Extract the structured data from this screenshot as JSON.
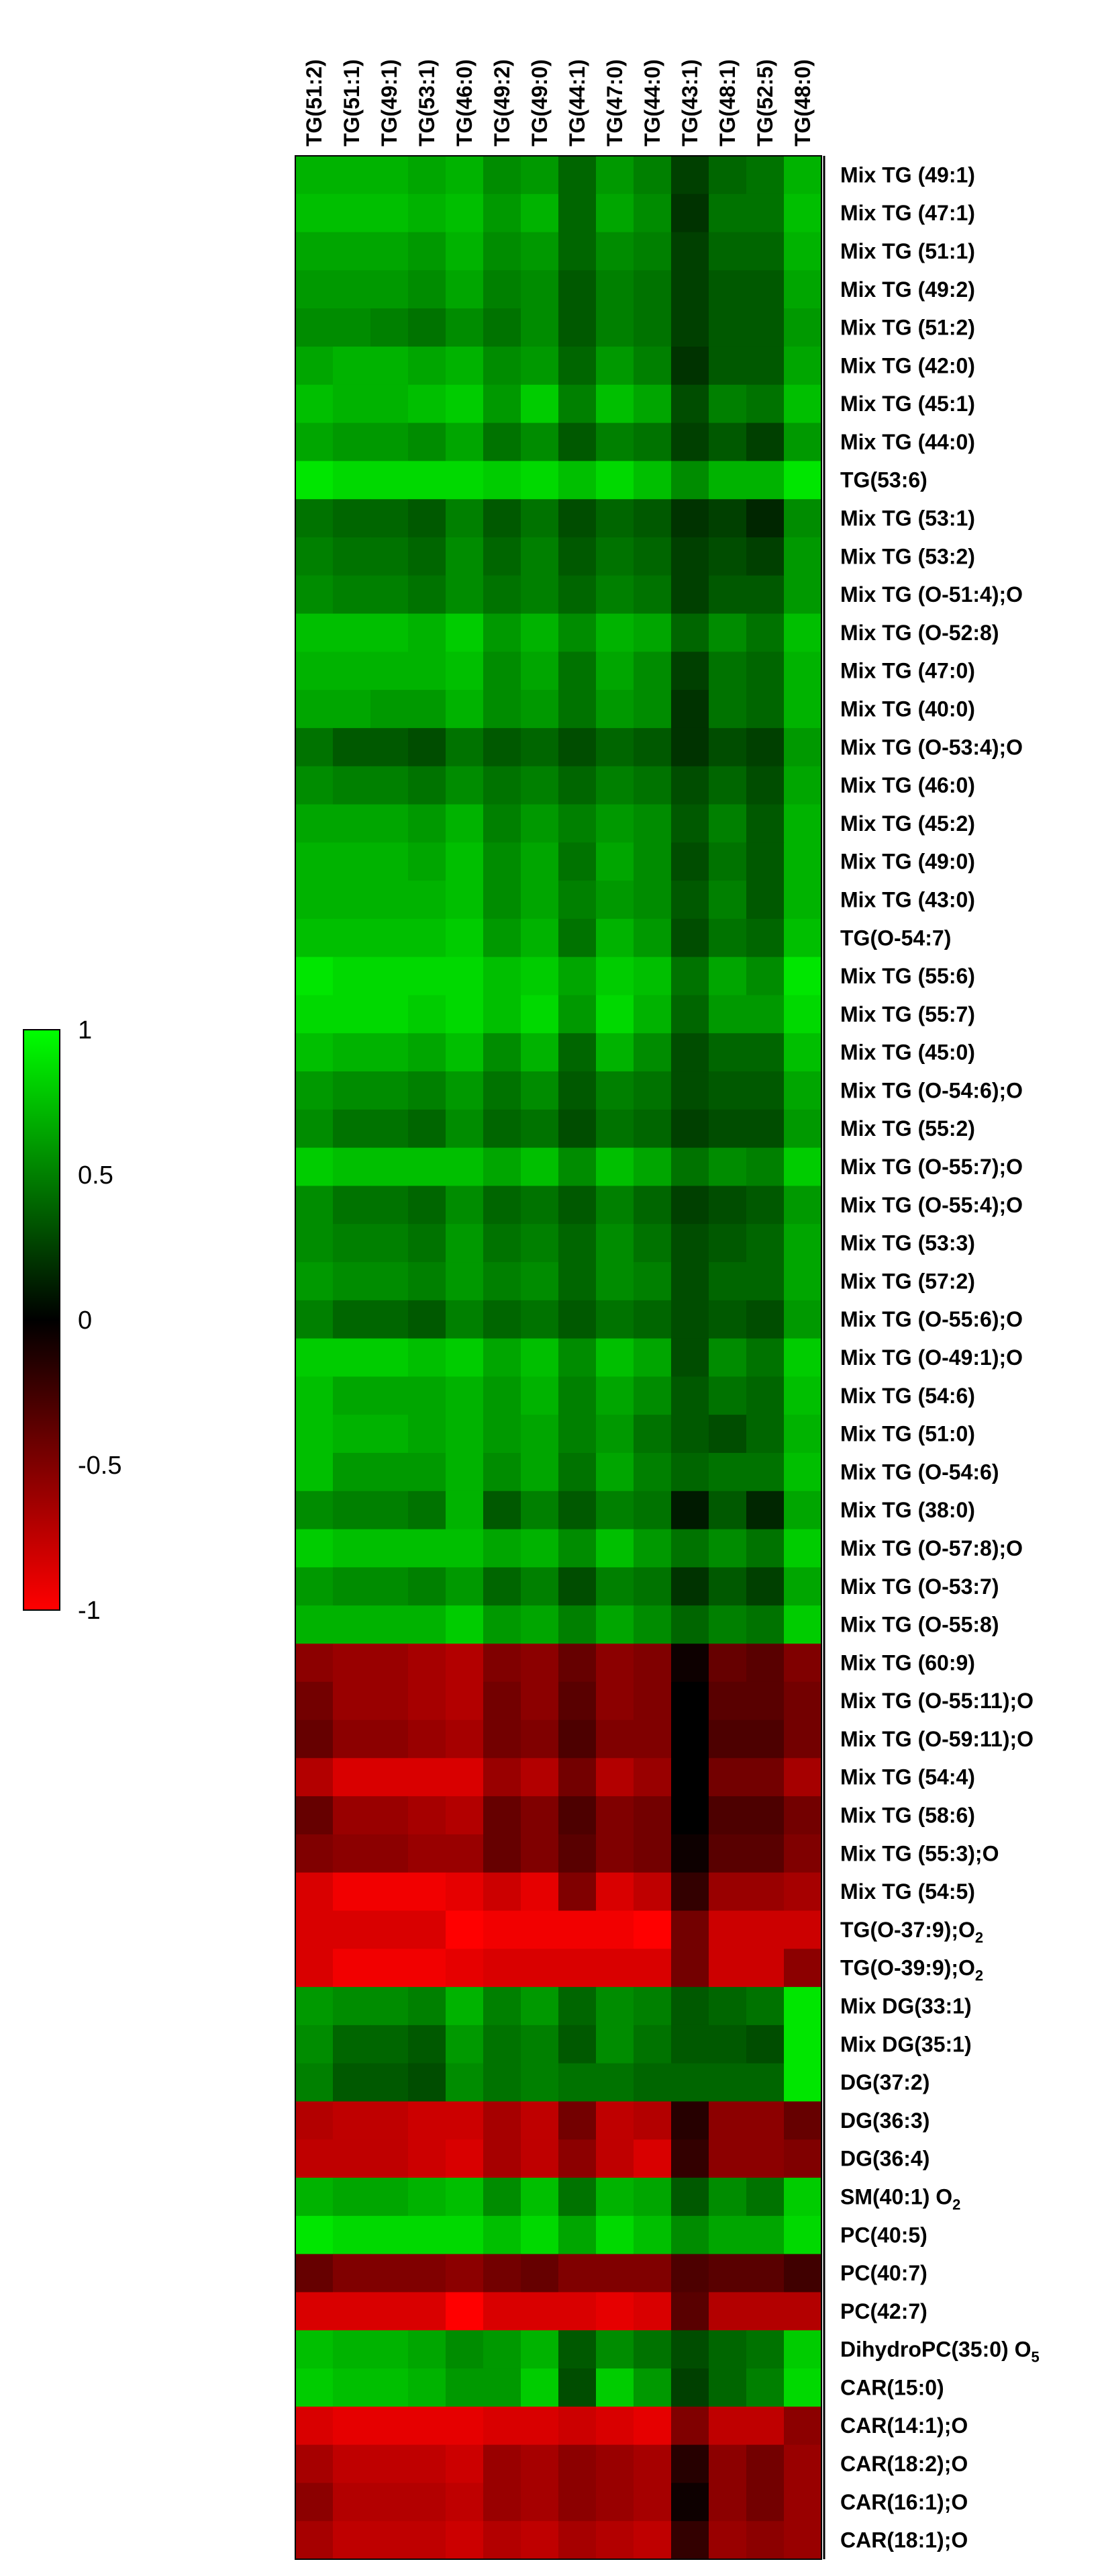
{
  "chart_data": {
    "type": "heatmap",
    "title": "",
    "xlabel": "",
    "ylabel": "",
    "columns": [
      "TG(51:2)",
      "TG(51:1)",
      "TG(49:1)",
      "TG(53:1)",
      "TG(46:0)",
      "TG(49:2)",
      "TG(49:0)",
      "TG(44:1)",
      "TG(47:0)",
      "TG(44:0)",
      "TG(43:1)",
      "TG(48:1)",
      "TG(52:5)",
      "TG(48:0)"
    ],
    "rows": [
      {
        "label": "Mix TG (49:1)"
      },
      {
        "label": "Mix TG (47:1)"
      },
      {
        "label": "Mix TG (51:1)"
      },
      {
        "label": "Mix TG (49:2)"
      },
      {
        "label": "Mix TG (51:2)"
      },
      {
        "label": "Mix TG (42:0)"
      },
      {
        "label": "Mix TG (45:1)"
      },
      {
        "label": "Mix TG (44:0)"
      },
      {
        "label": "TG(53:6)"
      },
      {
        "label": "Mix TG (53:1)"
      },
      {
        "label": "Mix TG (53:2)"
      },
      {
        "label": "Mix TG (O-51:4);O"
      },
      {
        "label": "Mix TG (O-52:8)"
      },
      {
        "label": "Mix TG (47:0)"
      },
      {
        "label": "Mix TG (40:0)"
      },
      {
        "label": "Mix TG (O-53:4);O"
      },
      {
        "label": "Mix TG (46:0)"
      },
      {
        "label": "Mix TG (45:2)"
      },
      {
        "label": "Mix TG (49:0)"
      },
      {
        "label": "Mix TG (43:0)"
      },
      {
        "label": "TG(O-54:7)"
      },
      {
        "label": "Mix TG (55:6)"
      },
      {
        "label": "Mix TG (55:7)"
      },
      {
        "label": "Mix TG (45:0)"
      },
      {
        "label": "Mix TG (O-54:6);O"
      },
      {
        "label": "Mix TG (55:2)"
      },
      {
        "label": "Mix TG (O-55:7);O"
      },
      {
        "label": "Mix TG (O-55:4);O"
      },
      {
        "label": "Mix TG (53:3)"
      },
      {
        "label": "Mix TG (57:2)"
      },
      {
        "label": "Mix TG (O-55:6);O"
      },
      {
        "label": "Mix TG (O-49:1);O"
      },
      {
        "label": "Mix TG (54:6)"
      },
      {
        "label": "Mix TG (51:0)"
      },
      {
        "label": "Mix TG (O-54:6)"
      },
      {
        "label": "Mix TG (38:0)"
      },
      {
        "label": "Mix TG (O-57:8);O"
      },
      {
        "label": "Mix TG (O-53:7)"
      },
      {
        "label": "Mix TG (O-55:8)"
      },
      {
        "label": "Mix TG (60:9)"
      },
      {
        "label": "Mix TG (O-55:11);O"
      },
      {
        "label": "Mix TG (O-59:11);O"
      },
      {
        "label": "Mix TG (54:4)"
      },
      {
        "label": "Mix TG (58:6)"
      },
      {
        "label": "Mix TG (55:3);O"
      },
      {
        "label": "Mix TG (54:5)"
      },
      {
        "label": "TG(O-37:9);O",
        "sub": "2"
      },
      {
        "label": "TG(O-39:9);O",
        "sub": "2"
      },
      {
        "label": "Mix DG(33:1)"
      },
      {
        "label": "Mix DG(35:1)"
      },
      {
        "label": "DG(37:2)"
      },
      {
        "label": "DG(36:3)"
      },
      {
        "label": "DG(36:4)"
      },
      {
        "label": "SM(40:1) O",
        "sub": "2"
      },
      {
        "label": "PC(40:5)"
      },
      {
        "label": "PC(40:7)"
      },
      {
        "label": "PC(42:7)"
      },
      {
        "label": "DihydroPC(35:0) O",
        "sub": "5"
      },
      {
        "label": "CAR(15:0)"
      },
      {
        "label": "CAR(14:1);O"
      },
      {
        "label": "CAR(18:2);O"
      },
      {
        "label": "CAR(16:1);O"
      },
      {
        "label": "CAR(18:1);O"
      }
    ],
    "values": [
      [
        0.7,
        0.7,
        0.7,
        0.65,
        0.7,
        0.55,
        0.6,
        0.4,
        0.6,
        0.5,
        0.25,
        0.4,
        0.45,
        0.7
      ],
      [
        0.75,
        0.75,
        0.75,
        0.7,
        0.75,
        0.6,
        0.7,
        0.4,
        0.65,
        0.55,
        0.2,
        0.45,
        0.45,
        0.75
      ],
      [
        0.65,
        0.65,
        0.65,
        0.6,
        0.7,
        0.55,
        0.6,
        0.4,
        0.55,
        0.5,
        0.25,
        0.4,
        0.4,
        0.7
      ],
      [
        0.6,
        0.6,
        0.6,
        0.55,
        0.65,
        0.5,
        0.55,
        0.35,
        0.5,
        0.45,
        0.25,
        0.35,
        0.35,
        0.65
      ],
      [
        0.55,
        0.55,
        0.5,
        0.45,
        0.55,
        0.45,
        0.55,
        0.35,
        0.5,
        0.45,
        0.25,
        0.35,
        0.35,
        0.6
      ],
      [
        0.65,
        0.7,
        0.7,
        0.65,
        0.7,
        0.55,
        0.6,
        0.4,
        0.6,
        0.5,
        0.2,
        0.35,
        0.35,
        0.65
      ],
      [
        0.75,
        0.7,
        0.7,
        0.75,
        0.8,
        0.6,
        0.8,
        0.5,
        0.75,
        0.65,
        0.3,
        0.5,
        0.45,
        0.75
      ],
      [
        0.65,
        0.6,
        0.6,
        0.55,
        0.65,
        0.45,
        0.55,
        0.35,
        0.5,
        0.45,
        0.25,
        0.35,
        0.25,
        0.6
      ],
      [
        0.9,
        0.85,
        0.85,
        0.85,
        0.85,
        0.8,
        0.85,
        0.75,
        0.85,
        0.75,
        0.55,
        0.7,
        0.7,
        0.9
      ],
      [
        0.45,
        0.4,
        0.4,
        0.35,
        0.5,
        0.35,
        0.45,
        0.3,
        0.4,
        0.35,
        0.2,
        0.25,
        0.15,
        0.55
      ],
      [
        0.5,
        0.45,
        0.45,
        0.4,
        0.55,
        0.4,
        0.5,
        0.35,
        0.45,
        0.4,
        0.25,
        0.3,
        0.25,
        0.6
      ],
      [
        0.55,
        0.5,
        0.5,
        0.45,
        0.55,
        0.45,
        0.5,
        0.4,
        0.5,
        0.45,
        0.25,
        0.35,
        0.35,
        0.6
      ],
      [
        0.75,
        0.75,
        0.75,
        0.7,
        0.8,
        0.6,
        0.7,
        0.55,
        0.7,
        0.65,
        0.4,
        0.55,
        0.45,
        0.75
      ],
      [
        0.7,
        0.7,
        0.7,
        0.7,
        0.75,
        0.55,
        0.65,
        0.45,
        0.65,
        0.55,
        0.25,
        0.45,
        0.4,
        0.7
      ],
      [
        0.65,
        0.65,
        0.6,
        0.6,
        0.7,
        0.55,
        0.6,
        0.45,
        0.6,
        0.55,
        0.2,
        0.45,
        0.4,
        0.7
      ],
      [
        0.45,
        0.35,
        0.35,
        0.3,
        0.45,
        0.35,
        0.4,
        0.3,
        0.4,
        0.35,
        0.2,
        0.3,
        0.25,
        0.6
      ],
      [
        0.55,
        0.5,
        0.5,
        0.45,
        0.55,
        0.45,
        0.5,
        0.4,
        0.5,
        0.45,
        0.3,
        0.4,
        0.3,
        0.65
      ],
      [
        0.65,
        0.65,
        0.65,
        0.6,
        0.7,
        0.5,
        0.6,
        0.5,
        0.6,
        0.55,
        0.35,
        0.5,
        0.35,
        0.7
      ],
      [
        0.7,
        0.7,
        0.7,
        0.65,
        0.75,
        0.55,
        0.65,
        0.45,
        0.65,
        0.55,
        0.3,
        0.45,
        0.35,
        0.7
      ],
      [
        0.7,
        0.7,
        0.7,
        0.7,
        0.75,
        0.55,
        0.65,
        0.5,
        0.6,
        0.55,
        0.35,
        0.5,
        0.35,
        0.7
      ],
      [
        0.75,
        0.75,
        0.75,
        0.75,
        0.8,
        0.6,
        0.7,
        0.45,
        0.7,
        0.6,
        0.3,
        0.45,
        0.4,
        0.75
      ],
      [
        0.9,
        0.85,
        0.85,
        0.85,
        0.85,
        0.75,
        0.8,
        0.65,
        0.8,
        0.75,
        0.45,
        0.65,
        0.55,
        0.9
      ],
      [
        0.85,
        0.85,
        0.85,
        0.8,
        0.85,
        0.75,
        0.85,
        0.6,
        0.85,
        0.7,
        0.4,
        0.6,
        0.6,
        0.85
      ],
      [
        0.75,
        0.7,
        0.7,
        0.65,
        0.75,
        0.55,
        0.7,
        0.4,
        0.7,
        0.55,
        0.3,
        0.4,
        0.4,
        0.75
      ],
      [
        0.6,
        0.55,
        0.55,
        0.5,
        0.6,
        0.45,
        0.55,
        0.35,
        0.5,
        0.45,
        0.3,
        0.35,
        0.35,
        0.65
      ],
      [
        0.55,
        0.45,
        0.45,
        0.4,
        0.55,
        0.4,
        0.45,
        0.3,
        0.45,
        0.4,
        0.25,
        0.3,
        0.3,
        0.6
      ],
      [
        0.8,
        0.75,
        0.75,
        0.75,
        0.75,
        0.65,
        0.75,
        0.55,
        0.75,
        0.65,
        0.45,
        0.55,
        0.5,
        0.8
      ],
      [
        0.55,
        0.45,
        0.45,
        0.4,
        0.55,
        0.4,
        0.45,
        0.35,
        0.5,
        0.4,
        0.25,
        0.3,
        0.35,
        0.6
      ],
      [
        0.55,
        0.5,
        0.5,
        0.45,
        0.6,
        0.45,
        0.5,
        0.4,
        0.55,
        0.45,
        0.3,
        0.35,
        0.4,
        0.65
      ],
      [
        0.6,
        0.55,
        0.55,
        0.5,
        0.6,
        0.5,
        0.55,
        0.4,
        0.55,
        0.5,
        0.3,
        0.4,
        0.4,
        0.65
      ],
      [
        0.5,
        0.4,
        0.4,
        0.35,
        0.5,
        0.4,
        0.45,
        0.35,
        0.45,
        0.4,
        0.3,
        0.35,
        0.3,
        0.6
      ],
      [
        0.8,
        0.8,
        0.8,
        0.75,
        0.8,
        0.65,
        0.75,
        0.55,
        0.75,
        0.65,
        0.3,
        0.55,
        0.45,
        0.8
      ],
      [
        0.75,
        0.65,
        0.65,
        0.65,
        0.7,
        0.6,
        0.7,
        0.5,
        0.65,
        0.55,
        0.35,
        0.45,
        0.4,
        0.75
      ],
      [
        0.75,
        0.7,
        0.7,
        0.65,
        0.7,
        0.6,
        0.65,
        0.5,
        0.6,
        0.45,
        0.35,
        0.3,
        0.4,
        0.7
      ],
      [
        0.75,
        0.6,
        0.6,
        0.6,
        0.7,
        0.55,
        0.65,
        0.45,
        0.65,
        0.5,
        0.4,
        0.45,
        0.45,
        0.75
      ],
      [
        0.55,
        0.5,
        0.5,
        0.45,
        0.7,
        0.35,
        0.5,
        0.35,
        0.5,
        0.45,
        0.1,
        0.35,
        0.15,
        0.65
      ],
      [
        0.8,
        0.75,
        0.75,
        0.75,
        0.75,
        0.65,
        0.7,
        0.55,
        0.75,
        0.6,
        0.45,
        0.55,
        0.45,
        0.8
      ],
      [
        0.6,
        0.55,
        0.55,
        0.5,
        0.6,
        0.4,
        0.5,
        0.3,
        0.5,
        0.45,
        0.2,
        0.35,
        0.25,
        0.65
      ],
      [
        0.7,
        0.7,
        0.7,
        0.7,
        0.8,
        0.6,
        0.65,
        0.5,
        0.65,
        0.55,
        0.4,
        0.5,
        0.45,
        0.8
      ],
      [
        -0.55,
        -0.6,
        -0.6,
        -0.65,
        -0.7,
        -0.5,
        -0.55,
        -0.4,
        -0.55,
        -0.5,
        -0.05,
        -0.4,
        -0.35,
        -0.5
      ],
      [
        -0.45,
        -0.6,
        -0.6,
        -0.65,
        -0.7,
        -0.45,
        -0.55,
        -0.35,
        -0.55,
        -0.5,
        0.0,
        -0.35,
        -0.35,
        -0.45
      ],
      [
        -0.4,
        -0.55,
        -0.55,
        -0.6,
        -0.65,
        -0.45,
        -0.5,
        -0.3,
        -0.5,
        -0.5,
        0.0,
        -0.3,
        -0.3,
        -0.45
      ],
      [
        -0.7,
        -0.85,
        -0.85,
        -0.85,
        -0.85,
        -0.6,
        -0.7,
        -0.45,
        -0.7,
        -0.6,
        0.0,
        -0.45,
        -0.45,
        -0.65
      ],
      [
        -0.4,
        -0.6,
        -0.6,
        -0.65,
        -0.7,
        -0.4,
        -0.5,
        -0.3,
        -0.5,
        -0.45,
        0.0,
        -0.3,
        -0.3,
        -0.45
      ],
      [
        -0.5,
        -0.55,
        -0.55,
        -0.6,
        -0.6,
        -0.4,
        -0.5,
        -0.35,
        -0.5,
        -0.45,
        -0.05,
        -0.35,
        -0.35,
        -0.5
      ],
      [
        -0.85,
        -0.95,
        -0.95,
        -0.95,
        -0.9,
        -0.8,
        -0.9,
        -0.5,
        -0.85,
        -0.75,
        -0.2,
        -0.6,
        -0.6,
        -0.65
      ],
      [
        -0.85,
        -0.85,
        -0.85,
        -0.85,
        -1.0,
        -0.95,
        -0.95,
        -0.95,
        -0.95,
        -1.0,
        -0.45,
        -0.8,
        -0.8,
        -0.8
      ],
      [
        -0.85,
        -0.95,
        -0.95,
        -0.95,
        -0.9,
        -0.85,
        -0.85,
        -0.85,
        -0.85,
        -0.85,
        -0.45,
        -0.8,
        -0.8,
        -0.55
      ],
      [
        0.6,
        0.55,
        0.55,
        0.5,
        0.7,
        0.5,
        0.6,
        0.4,
        0.55,
        0.5,
        0.35,
        0.4,
        0.45,
        0.9
      ],
      [
        0.55,
        0.4,
        0.4,
        0.35,
        0.6,
        0.45,
        0.5,
        0.35,
        0.55,
        0.45,
        0.35,
        0.35,
        0.3,
        0.9
      ],
      [
        0.5,
        0.35,
        0.35,
        0.3,
        0.55,
        0.45,
        0.5,
        0.45,
        0.45,
        0.4,
        0.4,
        0.4,
        0.4,
        0.9
      ],
      [
        -0.7,
        -0.75,
        -0.75,
        -0.8,
        -0.8,
        -0.65,
        -0.75,
        -0.45,
        -0.75,
        -0.7,
        -0.15,
        -0.55,
        -0.55,
        -0.4
      ],
      [
        -0.75,
        -0.75,
        -0.75,
        -0.8,
        -0.85,
        -0.65,
        -0.75,
        -0.55,
        -0.75,
        -0.85,
        -0.2,
        -0.55,
        -0.55,
        -0.5
      ],
      [
        0.7,
        0.65,
        0.65,
        0.7,
        0.75,
        0.55,
        0.75,
        0.45,
        0.7,
        0.65,
        0.35,
        0.55,
        0.45,
        0.8
      ],
      [
        0.9,
        0.85,
        0.85,
        0.85,
        0.85,
        0.75,
        0.85,
        0.65,
        0.85,
        0.75,
        0.55,
        0.65,
        0.65,
        0.85
      ],
      [
        -0.4,
        -0.5,
        -0.5,
        -0.5,
        -0.55,
        -0.45,
        -0.4,
        -0.5,
        -0.5,
        -0.5,
        -0.3,
        -0.35,
        -0.35,
        -0.25
      ],
      [
        -0.85,
        -0.85,
        -0.85,
        -0.85,
        -1.0,
        -0.85,
        -0.85,
        -0.85,
        -0.9,
        -0.85,
        -0.35,
        -0.7,
        -0.7,
        -0.7
      ],
      [
        0.75,
        0.7,
        0.7,
        0.65,
        0.55,
        0.6,
        0.7,
        0.35,
        0.55,
        0.45,
        0.3,
        0.4,
        0.45,
        0.8
      ],
      [
        0.8,
        0.75,
        0.75,
        0.7,
        0.6,
        0.6,
        0.8,
        0.3,
        0.8,
        0.6,
        0.25,
        0.4,
        0.5,
        0.85
      ],
      [
        -0.85,
        -0.9,
        -0.9,
        -0.9,
        -0.9,
        -0.85,
        -0.85,
        -0.8,
        -0.85,
        -0.9,
        -0.5,
        -0.75,
        -0.75,
        -0.55
      ],
      [
        -0.65,
        -0.75,
        -0.75,
        -0.75,
        -0.8,
        -0.6,
        -0.65,
        -0.55,
        -0.6,
        -0.65,
        -0.15,
        -0.55,
        -0.45,
        -0.6
      ],
      [
        -0.55,
        -0.7,
        -0.7,
        -0.7,
        -0.75,
        -0.6,
        -0.65,
        -0.55,
        -0.6,
        -0.65,
        -0.05,
        -0.55,
        -0.45,
        -0.6
      ],
      [
        -0.65,
        -0.75,
        -0.75,
        -0.75,
        -0.8,
        -0.7,
        -0.75,
        -0.65,
        -0.7,
        -0.75,
        -0.2,
        -0.6,
        -0.55,
        -0.6
      ]
    ],
    "colorbar": {
      "min": -1,
      "max": 1,
      "ticks": [
        1,
        0.5,
        0,
        -0.5,
        -1
      ],
      "colors": {
        "low": "#ff0000",
        "mid": "#000000",
        "high": "#00ff00"
      }
    },
    "grid": false,
    "legend_position": "left"
  }
}
